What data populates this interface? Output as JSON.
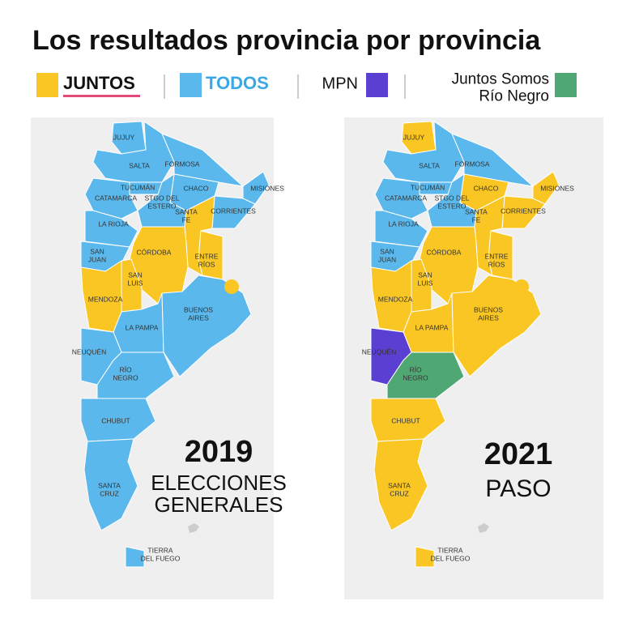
{
  "title": "Los resultados provincia por provincia",
  "legend": [
    {
      "label": [
        "JUNTOS"
      ],
      "color": "#f9c623"
    },
    {
      "label": [
        "TODOS"
      ],
      "color": "#5bb8ec"
    },
    {
      "label": [
        "MPN"
      ],
      "color": "#5a3fd3"
    },
    {
      "label": [
        "Juntos Somos",
        "Río Negro"
      ],
      "color": "#4fa874"
    }
  ],
  "maps": [
    {
      "year": "2019",
      "subtitle": [
        "ELECCIONES",
        "GENERALES"
      ],
      "provinces": [
        {
          "label": [
            "JUJUY"
          ],
          "party": 1
        },
        {
          "label": [
            "SALTA"
          ],
          "party": 1
        },
        {
          "label": [
            "FORMOSA"
          ],
          "party": 1
        },
        {
          "label": [
            "CHACO"
          ],
          "party": 1
        },
        {
          "label": [
            "TUCUMÁN"
          ],
          "party": 1
        },
        {
          "label": [
            "CATAMARCA"
          ],
          "party": 1
        },
        {
          "label": [
            "STGO DEL",
            "ESTERO"
          ],
          "party": 1
        },
        {
          "label": [
            "MISIONES"
          ],
          "party": 1
        },
        {
          "label": [
            "CORRIENTES"
          ],
          "party": 1
        },
        {
          "label": [
            "LA RIOJA"
          ],
          "party": 1
        },
        {
          "label": [
            "SANTA",
            "FE"
          ],
          "party": 0
        },
        {
          "label": [
            "SAN",
            "JUAN"
          ],
          "party": 1
        },
        {
          "label": [
            "CÓRDOBA"
          ],
          "party": 0
        },
        {
          "label": [
            "ENTRE",
            "RÍOS"
          ],
          "party": 0
        },
        {
          "label": [
            "SAN",
            "LUIS"
          ],
          "party": 0
        },
        {
          "label": [
            "MENDOZA"
          ],
          "party": 0
        },
        {
          "label": [
            "LA PAMPA"
          ],
          "party": 1
        },
        {
          "label": [
            "BUENOS",
            "AIRES"
          ],
          "party": 1
        },
        {
          "party": 0
        },
        {
          "label": [
            "NEUQUÉN"
          ],
          "party": 1
        },
        {
          "label": [
            "RÍO",
            "NEGRO"
          ],
          "party": 1
        },
        {
          "label": [
            "CHUBUT"
          ],
          "party": 1
        },
        {
          "label": [
            "SANTA",
            "CRUZ"
          ],
          "party": 1
        },
        {
          "label": [
            "TIERRA",
            "DEL FUEGO"
          ],
          "party": 1
        }
      ]
    },
    {
      "year": "2021",
      "subtitle": [
        "PASO"
      ],
      "provinces": [
        {
          "label": [
            "JUJUY"
          ],
          "party": 0
        },
        {
          "label": [
            "SALTA"
          ],
          "party": 1
        },
        {
          "label": [
            "FORMOSA"
          ],
          "party": 1
        },
        {
          "label": [
            "CHACO"
          ],
          "party": 0
        },
        {
          "label": [
            "TUCUMÁN"
          ],
          "party": 1
        },
        {
          "label": [
            "CATAMARCA"
          ],
          "party": 1
        },
        {
          "label": [
            "STGO DEL",
            "ESTERO"
          ],
          "party": 1
        },
        {
          "label": [
            "MISIONES"
          ],
          "party": 0
        },
        {
          "label": [
            "CORRIENTES"
          ],
          "party": 0
        },
        {
          "label": [
            "LA RIOJA"
          ],
          "party": 1
        },
        {
          "label": [
            "SANTA",
            "FE"
          ],
          "party": 0
        },
        {
          "label": [
            "SAN",
            "JUAN"
          ],
          "party": 1
        },
        {
          "label": [
            "CÓRDOBA"
          ],
          "party": 0
        },
        {
          "label": [
            "ENTRE",
            "RÍOS"
          ],
          "party": 0
        },
        {
          "label": [
            "SAN",
            "LUIS"
          ],
          "party": 0
        },
        {
          "label": [
            "MENDOZA"
          ],
          "party": 0
        },
        {
          "label": [
            "LA PAMPA"
          ],
          "party": 0
        },
        {
          "label": [
            "BUENOS",
            "AIRES"
          ],
          "party": 0
        },
        {
          "party": 0
        },
        {
          "label": [
            "NEUQUÉN"
          ],
          "party": 2
        },
        {
          "label": [
            "RÍO",
            "NEGRO"
          ],
          "party": 3
        },
        {
          "label": [
            "CHUBUT"
          ],
          "party": 0
        },
        {
          "label": [
            "SANTA",
            "CRUZ"
          ],
          "party": 0
        },
        {
          "label": [
            "TIERRA",
            "DEL FUEGO"
          ],
          "party": 0
        }
      ]
    }
  ]
}
